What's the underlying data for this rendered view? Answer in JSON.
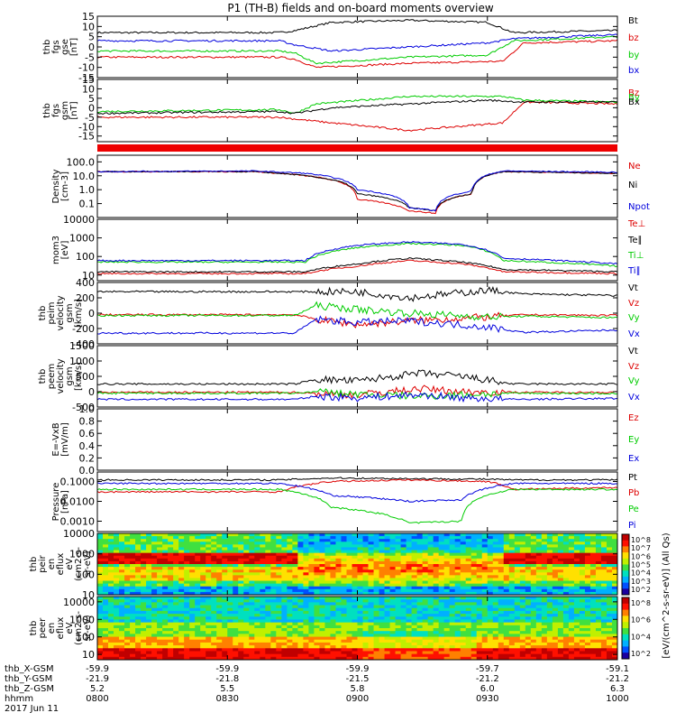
{
  "title": "P1 (TH-B) fields and on-board moments overview",
  "time_labels": [
    "0800",
    "0830",
    "0900",
    "0930",
    "1000"
  ],
  "footer_rows": [
    {
      "label": "thb_X-GSM",
      "values": [
        "-59.9",
        "-59.9",
        "-59.9",
        "-59.7",
        "-59.1"
      ]
    },
    {
      "label": "thb_Y-GSM",
      "values": [
        "-21.9",
        "-21.8",
        "-21.5",
        "-21.2",
        "-21.2"
      ]
    },
    {
      "label": "thb_Z-GSM",
      "values": [
        "5.2",
        "5.5",
        "5.8",
        "6.0",
        "6.3"
      ]
    },
    {
      "label": "hhmm",
      "values": [
        "0800",
        "0830",
        "0900",
        "0930",
        "1000"
      ]
    }
  ],
  "date": "2017 Jun 11",
  "colorbar_unit": "[eV/(cm^2-s-sr-eV)] (All Qs)",
  "colorbar_ticks_top": [
    "10^8",
    "10^7",
    "10^6",
    "10^5",
    "10^4",
    "10^3",
    "10^2"
  ],
  "colorbar_ticks_bottom": [
    "10^8",
    "10^6",
    "10^4",
    "10^2"
  ],
  "colors": {
    "black": "#000000",
    "red": "#dd0000",
    "green": "#00cc00",
    "blue": "#0000dd",
    "bar": "#ee0000"
  },
  "chart_data": [
    {
      "id": "fgs1",
      "type": "line",
      "scale": "linear",
      "ylim": [
        -15,
        15
      ],
      "yticks": [
        "-15",
        "-10",
        "-5",
        "0",
        "5",
        "10",
        "15"
      ],
      "ylabel": [
        "thb",
        "fgs",
        "gse",
        "[nT]"
      ],
      "series": [
        {
          "name": "Bt",
          "color": "#000000",
          "t": [
            0,
            0.35,
            0.38,
            0.45,
            0.6,
            0.75,
            0.8,
            1
          ],
          "v": [
            7,
            7,
            8,
            12,
            13,
            12,
            7,
            8
          ]
        },
        {
          "name": "bz",
          "color": "#dd0000",
          "t": [
            0,
            0.35,
            0.38,
            0.42,
            0.6,
            0.78,
            0.82,
            1
          ],
          "v": [
            -5,
            -5,
            -6,
            -10,
            -8,
            -7,
            2,
            3
          ]
        },
        {
          "name": "by",
          "color": "#00cc00",
          "t": [
            0,
            0.35,
            0.38,
            0.42,
            0.6,
            0.75,
            0.8,
            1
          ],
          "v": [
            -2,
            -2,
            -3,
            -8,
            -5,
            -4,
            3,
            5
          ]
        },
        {
          "name": "bx",
          "color": "#0000dd",
          "t": [
            0,
            0.35,
            0.38,
            0.45,
            0.6,
            0.75,
            0.8,
            1
          ],
          "v": [
            3,
            3,
            1,
            -2,
            0,
            2,
            4,
            6
          ]
        }
      ]
    },
    {
      "id": "fgs2",
      "type": "line",
      "scale": "linear",
      "ylim": [
        -18,
        15
      ],
      "yticks": [
        "-15",
        "-10",
        "-5",
        "0",
        "5",
        "10",
        "15"
      ],
      "ylabel": [
        "thb",
        "fgs",
        "gsm",
        "[nT]"
      ],
      "legend_labels": [
        "Bz",
        "By",
        "Bx"
      ],
      "series": [
        {
          "name": "Bz",
          "color": "#dd0000",
          "t": [
            0,
            0.35,
            0.38,
            0.45,
            0.6,
            0.78,
            0.82,
            1
          ],
          "v": [
            -5,
            -5,
            -6,
            -8,
            -12,
            -8,
            3,
            2
          ]
        },
        {
          "name": "By",
          "color": "#00cc00",
          "t": [
            0,
            0.35,
            0.38,
            0.42,
            0.6,
            0.78,
            0.82,
            1
          ],
          "v": [
            -2,
            -1,
            -3,
            2,
            6,
            6,
            4,
            3
          ]
        },
        {
          "name": "Bx",
          "color": "#000000",
          "t": [
            0,
            0.35,
            0.38,
            0.45,
            0.6,
            0.75,
            0.82,
            1
          ],
          "v": [
            -3,
            -2,
            -3,
            0,
            2,
            4,
            3,
            3
          ]
        }
      ]
    },
    {
      "id": "density",
      "type": "line",
      "scale": "log",
      "ylim": [
        0.01,
        300
      ],
      "yticks": [
        "0.1",
        "1.0",
        "10.0",
        "100.0"
      ],
      "ylabel": [
        "Density",
        "[cm-3]"
      ],
      "series": [
        {
          "name": "Ne",
          "color": "#dd0000",
          "t": [
            0,
            0.3,
            0.4,
            0.5,
            0.6,
            0.65,
            0.72,
            0.78,
            1
          ],
          "v": [
            20,
            20,
            10,
            0.2,
            0.03,
            0.02,
            0.5,
            20,
            15
          ]
        },
        {
          "name": "Ni",
          "color": "#000000",
          "t": [
            0,
            0.3,
            0.4,
            0.5,
            0.6,
            0.65,
            0.72,
            0.78,
            1
          ],
          "v": [
            20,
            20,
            10,
            0.5,
            0.05,
            0.03,
            0.5,
            20,
            15
          ]
        },
        {
          "name": "Npot",
          "color": "#0000dd",
          "t": [
            0,
            0.3,
            0.4,
            0.5,
            0.6,
            0.65,
            0.72,
            0.78,
            1
          ],
          "v": [
            20,
            22,
            15,
            1,
            0.05,
            0.03,
            0.8,
            22,
            18
          ]
        }
      ]
    },
    {
      "id": "temp",
      "type": "line",
      "scale": "log",
      "ylim": [
        5,
        10000
      ],
      "yticks": [
        "10",
        "100",
        "1000",
        "10000"
      ],
      "ylabel": [
        "mom3",
        "[eV]"
      ],
      "series": [
        {
          "name": "Te⊥",
          "color": "#dd0000",
          "t": [
            0,
            0.4,
            0.5,
            0.6,
            0.7,
            0.78,
            1
          ],
          "v": [
            12,
            12,
            30,
            60,
            40,
            15,
            12
          ]
        },
        {
          "name": "Te∥",
          "color": "#000000",
          "t": [
            0,
            0.4,
            0.5,
            0.6,
            0.7,
            0.78,
            1
          ],
          "v": [
            15,
            15,
            40,
            80,
            50,
            20,
            15
          ]
        },
        {
          "name": "Ti⊥",
          "color": "#00cc00",
          "t": [
            0,
            0.4,
            0.5,
            0.6,
            0.7,
            0.78,
            1
          ],
          "v": [
            50,
            50,
            300,
            500,
            400,
            60,
            30
          ]
        },
        {
          "name": "Ti∥",
          "color": "#0000dd",
          "t": [
            0,
            0.4,
            0.5,
            0.6,
            0.7,
            0.78,
            1
          ],
          "v": [
            60,
            60,
            400,
            600,
            450,
            80,
            40
          ]
        }
      ]
    },
    {
      "id": "peim",
      "type": "line",
      "scale": "linear",
      "ylim": [
        -400,
        400
      ],
      "yticks": [
        "-400",
        "-200",
        "0",
        "200",
        "400"
      ],
      "ylabel": [
        "thb",
        "peim",
        "velocity",
        "gsm",
        "[km/s]"
      ],
      "legend_labels": [
        "Vt",
        "Vz",
        "Vy",
        "Vx"
      ],
      "series": [
        {
          "name": "Vt",
          "color": "#000000",
          "t": [
            0,
            0.38,
            0.42,
            0.5,
            0.6,
            0.75,
            0.82,
            1
          ],
          "v": [
            280,
            280,
            280,
            280,
            200,
            300,
            250,
            230
          ]
        },
        {
          "name": "Vz",
          "color": "#dd0000",
          "t": [
            0,
            0.38,
            0.42,
            0.5,
            0.6,
            0.75,
            0.82,
            1
          ],
          "v": [
            -20,
            -20,
            -80,
            -150,
            -100,
            -50,
            -20,
            -30
          ]
        },
        {
          "name": "Vy",
          "color": "#00cc00",
          "t": [
            0,
            0.38,
            0.42,
            0.5,
            0.6,
            0.75,
            0.82,
            1
          ],
          "v": [
            -30,
            -30,
            100,
            50,
            0,
            -50,
            -40,
            -60
          ]
        },
        {
          "name": "Vx",
          "color": "#0000dd",
          "t": [
            0,
            0.38,
            0.42,
            0.5,
            0.6,
            0.75,
            0.82,
            1
          ],
          "v": [
            -260,
            -260,
            -80,
            -120,
            -100,
            -180,
            -250,
            -220
          ]
        }
      ]
    },
    {
      "id": "peem",
      "type": "line",
      "scale": "linear",
      "ylim": [
        -500,
        1500
      ],
      "yticks": [
        "-500",
        "0",
        "500",
        "1000",
        "1500"
      ],
      "ylabel": [
        "thb",
        "peem",
        "velocity",
        "gsm",
        "[km/s]"
      ],
      "legend_labels": [
        "Vt",
        "Vz",
        "Vy",
        "Vx"
      ],
      "series": [
        {
          "name": "Vt",
          "color": "#000000",
          "t": [
            0,
            0.38,
            0.42,
            0.5,
            0.62,
            0.7,
            0.8,
            1
          ],
          "v": [
            250,
            250,
            400,
            350,
            600,
            500,
            250,
            250
          ]
        },
        {
          "name": "Vz",
          "color": "#dd0000",
          "t": [
            0,
            0.38,
            0.42,
            0.5,
            0.62,
            0.7,
            0.8,
            1
          ],
          "v": [
            -20,
            -20,
            -50,
            -100,
            100,
            0,
            -20,
            -20
          ]
        },
        {
          "name": "Vy",
          "color": "#00cc00",
          "t": [
            0,
            0.38,
            0.42,
            0.5,
            0.62,
            0.7,
            0.8,
            1
          ],
          "v": [
            -50,
            -50,
            0,
            -80,
            -150,
            -100,
            -50,
            -60
          ]
        },
        {
          "name": "Vx",
          "color": "#0000dd",
          "t": [
            0,
            0.38,
            0.42,
            0.5,
            0.62,
            0.7,
            0.8,
            1
          ],
          "v": [
            -250,
            -250,
            -150,
            -200,
            -100,
            -200,
            -250,
            -220
          ]
        }
      ]
    },
    {
      "id": "efield",
      "type": "line",
      "scale": "linear",
      "ylim": [
        0,
        1
      ],
      "yticks": [
        "0.0",
        "0.2",
        "0.4",
        "0.6",
        "0.8",
        "1.0"
      ],
      "ylabel": [
        "E=-VxB",
        "[mV/m]"
      ],
      "legend_labels": [
        "Ez",
        "Ey",
        "Ex"
      ],
      "series": []
    },
    {
      "id": "pressure",
      "type": "line",
      "scale": "log",
      "ylim": [
        0.0003,
        0.3
      ],
      "yticks": [
        "0.0010",
        "0.0100",
        "0.1000"
      ],
      "ylabel": [
        "Pressure",
        "[nPa]"
      ],
      "series": [
        {
          "name": "Pt",
          "color": "#000000",
          "t": [
            0,
            0.35,
            0.45,
            0.6,
            0.75,
            0.8,
            1
          ],
          "v": [
            0.12,
            0.12,
            0.15,
            0.14,
            0.13,
            0.12,
            0.12
          ]
        },
        {
          "name": "Pb",
          "color": "#dd0000",
          "t": [
            0,
            0.35,
            0.45,
            0.6,
            0.75,
            0.8,
            1
          ],
          "v": [
            0.03,
            0.03,
            0.1,
            0.12,
            0.1,
            0.04,
            0.05
          ]
        },
        {
          "name": "Pe",
          "color": "#00cc00",
          "t": [
            0,
            0.35,
            0.45,
            0.6,
            0.7,
            0.8,
            1
          ],
          "v": [
            0.04,
            0.04,
            0.005,
            0.0008,
            0.001,
            0.04,
            0.04
          ]
        },
        {
          "name": "Pi",
          "color": "#0000dd",
          "t": [
            0,
            0.35,
            0.45,
            0.6,
            0.7,
            0.8,
            1
          ],
          "v": [
            0.08,
            0.08,
            0.02,
            0.01,
            0.012,
            0.08,
            0.08
          ]
        }
      ]
    },
    {
      "id": "peir",
      "type": "heatmap",
      "scale": "log",
      "ylim": [
        10,
        10000
      ],
      "yticks": [
        "10",
        "100",
        "1000",
        "10000"
      ],
      "ylabel": [
        "thb",
        "peir",
        "en",
        "eflux",
        "eV",
        "(cm2-s-",
        "sr-eV)"
      ]
    },
    {
      "id": "peer",
      "type": "heatmap",
      "scale": "log",
      "ylim": [
        5,
        20000
      ],
      "yticks": [
        "10",
        "100",
        "1000",
        "10000"
      ],
      "ylabel": [
        "thb",
        "peer",
        "en",
        "eflux",
        "eV",
        "(cm2-s-",
        "sr-eV)"
      ]
    }
  ]
}
